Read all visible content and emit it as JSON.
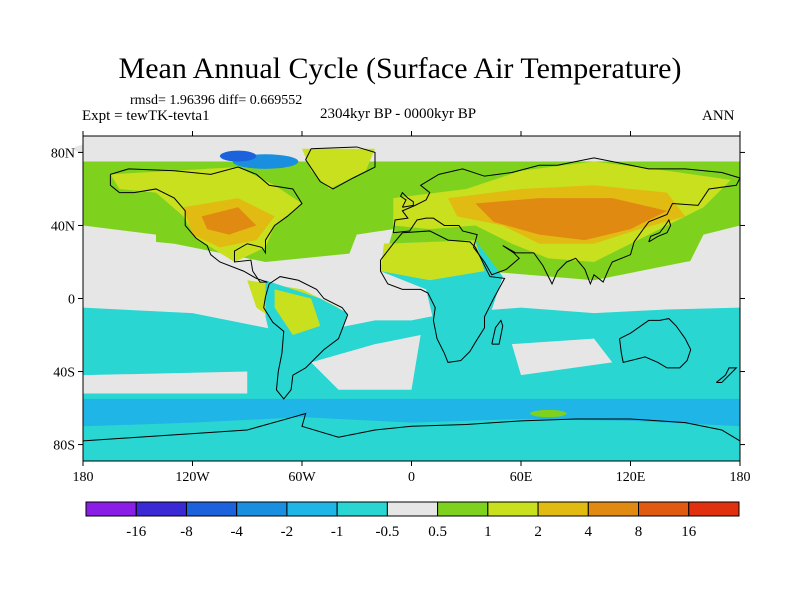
{
  "header": {
    "title": "Mean Annual Cycle (Surface Air Temperature)",
    "stats": "rmsd= 1.96396 diff= 0.669552",
    "expt": "Expt = tewTK-tevta1",
    "period": "2304kyr BP - 0000kyr BP",
    "season": "ANN"
  },
  "axes": {
    "lat_ticks": [
      "80N",
      "40N",
      "0",
      "40S",
      "80S"
    ],
    "lat_values": [
      80,
      40,
      0,
      -40,
      -80
    ],
    "lon_ticks": [
      "180",
      "120W",
      "60W",
      "0",
      "60E",
      "120E",
      "180"
    ],
    "lon_values": [
      -180,
      -120,
      -60,
      0,
      60,
      120,
      180
    ]
  },
  "colorbar": {
    "labels": [
      "-16",
      "-8",
      "-4",
      "-2",
      "-1",
      "-0.5",
      "0.5",
      "1",
      "2",
      "4",
      "8",
      "16"
    ],
    "colors": [
      "#8a1ee6",
      "#3a2ad6",
      "#1c62dd",
      "#1a8fe0",
      "#1fb5e6",
      "#29d6d2",
      "#e6e6e6",
      "#7ed21e",
      "#c8e01e",
      "#e2bb12",
      "#e08a12",
      "#e05a12",
      "#e0300e"
    ]
  },
  "map_colors": {
    "ocean_base": "#e6e6e6",
    "south_band": "#1fb5e6",
    "mid_south": "#29d6d2",
    "green": "#7ed21e",
    "yellow_green": "#c8e01e",
    "yellow": "#e2bb12",
    "orange": "#e08a12",
    "blue": "#1a8fe0",
    "deep_blue": "#1c62dd"
  }
}
